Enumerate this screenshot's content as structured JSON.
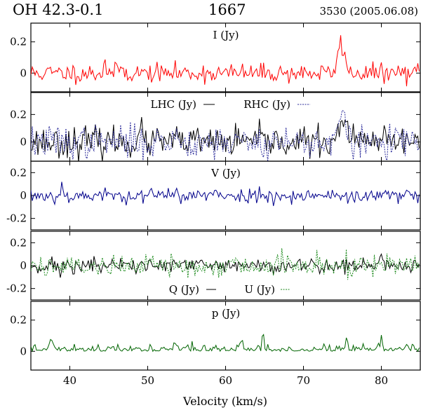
{
  "header": {
    "source": "OH 42.3-0.1",
    "frequency": "1667",
    "observation": "3530 (2005.06.08)"
  },
  "chart_data": {
    "type": "line",
    "xlabel": "Velocity (km/s)",
    "xlim": [
      35,
      85
    ],
    "xticks": [
      40,
      50,
      60,
      70,
      80
    ],
    "panels": [
      {
        "id": "I",
        "title": "I (Jy)",
        "ylim": [
          -0.12,
          0.32
        ],
        "yticks": [
          {
            "v": 0.2,
            "t": "0.2"
          },
          {
            "v": 0,
            "t": "0"
          }
        ],
        "series": [
          {
            "name": "I",
            "color": "#ff0000",
            "dash": "",
            "noise": 0.03,
            "seed": 11,
            "features": [
              {
                "x": 44.5,
                "a": 0.11,
                "w": 0.12
              },
              {
                "x": 46.5,
                "a": 0.05,
                "w": 0.2
              },
              {
                "x": 74.8,
                "a": 0.2,
                "w": 0.35
              },
              {
                "x": 75.4,
                "a": 0.06,
                "w": 0.15
              }
            ]
          }
        ]
      },
      {
        "id": "LR",
        "title": "LHC (Jy)",
        "title2": "RHC (Jy)",
        "ylim": [
          -0.14,
          0.36
        ],
        "yticks": [
          {
            "v": 0.2,
            "t": "0.2"
          },
          {
            "v": 0,
            "t": "0"
          }
        ],
        "series": [
          {
            "name": "LHC",
            "color": "#000000",
            "dash": "",
            "noise": 0.055,
            "seed": 23,
            "features": [
              {
                "x": 75.2,
                "a": 0.22,
                "w": 0.35
              },
              {
                "x": 49.0,
                "a": 0.08,
                "w": 0.2
              }
            ]
          },
          {
            "name": "RHC",
            "color": "#2a2a9a",
            "dash": "2,1.5",
            "noise": 0.06,
            "seed": 37,
            "features": [
              {
                "x": 75.0,
                "a": 0.2,
                "w": 0.4
              },
              {
                "x": 53.5,
                "a": 0.06,
                "w": 0.2
              }
            ]
          }
        ]
      },
      {
        "id": "V",
        "title": "V (Jy)",
        "ylim": [
          -0.3,
          0.3
        ],
        "yticks": [
          {
            "v": 0.2,
            "t": "0.2"
          },
          {
            "v": 0,
            "t": "0"
          },
          {
            "v": -0.2,
            "t": "-0.2"
          }
        ],
        "series": [
          {
            "name": "V",
            "color": "#00008b",
            "dash": "",
            "noise": 0.032,
            "seed": 53,
            "features": [
              {
                "x": 53.7,
                "a": 0.09,
                "w": 0.12
              },
              {
                "x": 39.0,
                "a": 0.07,
                "w": 0.15
              },
              {
                "x": 77.5,
                "a": -0.07,
                "w": 0.15
              }
            ]
          }
        ]
      },
      {
        "id": "QU",
        "title": "Q (Jy)",
        "title2": "U (Jy)",
        "ylim": [
          -0.3,
          0.3
        ],
        "yticks": [
          {
            "v": 0.2,
            "t": "0.2"
          },
          {
            "v": 0,
            "t": "0"
          },
          {
            "v": -0.2,
            "t": "-0.2"
          }
        ],
        "series": [
          {
            "name": "Q",
            "color": "#000000",
            "dash": "",
            "noise": 0.035,
            "seed": 71,
            "features": [
              {
                "x": 80.0,
                "a": 0.1,
                "w": 0.12
              },
              {
                "x": 38.8,
                "a": -0.08,
                "w": 0.15
              }
            ]
          },
          {
            "name": "U",
            "color": "#1c8a1c",
            "dash": "2,1.5",
            "noise": 0.05,
            "seed": 89,
            "features": [
              {
                "x": 61.3,
                "a": 0.09,
                "w": 0.12
              }
            ]
          }
        ]
      },
      {
        "id": "p",
        "title": "p (Jy)",
        "ylim": [
          -0.12,
          0.32
        ],
        "yticks": [
          {
            "v": 0.2,
            "t": "0.2"
          },
          {
            "v": 0,
            "t": "0"
          }
        ],
        "series": [
          {
            "name": "p",
            "color": "#006400",
            "dash": "",
            "noise": 0.022,
            "seed": 97,
            "positive": true,
            "features": [
              {
                "x": 64.8,
                "a": 0.12,
                "w": 0.1
              },
              {
                "x": 75.5,
                "a": 0.08,
                "w": 0.12
              },
              {
                "x": 37.8,
                "a": 0.05,
                "w": 0.15
              },
              {
                "x": 53.5,
                "a": 0.05,
                "w": 0.15
              },
              {
                "x": 80.0,
                "a": 0.08,
                "w": 0.12
              },
              {
                "x": 62.0,
                "a": 0.04,
                "w": 0.15
              }
            ]
          }
        ]
      }
    ]
  }
}
